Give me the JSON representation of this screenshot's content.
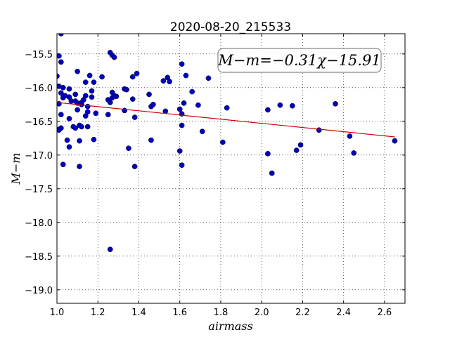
{
  "chart_data": {
    "type": "scatter",
    "title": "2020-08-20_215533",
    "xlabel": "airmass",
    "ylabel": "M−m",
    "xlim": [
      1.0,
      2.7
    ],
    "ylim": [
      -19.2,
      -15.2
    ],
    "y_inverted": true,
    "grid": true,
    "x_ticks": [
      1.0,
      1.2,
      1.4,
      1.6,
      1.8,
      2.0,
      2.2,
      2.4,
      2.6
    ],
    "x_tick_labels": [
      "1.0",
      "1.2",
      "1.4",
      "1.6",
      "1.8",
      "2.0",
      "2.2",
      "2.4",
      "2.6"
    ],
    "y_ticks": [
      -15.5,
      -16.0,
      -16.5,
      -17.0,
      -17.5,
      -18.0,
      -18.5,
      -19.0
    ],
    "y_tick_labels": [
      "−15.5",
      "−16.0",
      "−16.5",
      "−17.0",
      "−17.5",
      "−18.0",
      "−18.5",
      "−19.0"
    ],
    "annotation": "M−m=−0.31χ−15.91",
    "fit": {
      "slope": -0.31,
      "intercept": -15.91,
      "x_range": [
        1.0,
        2.65
      ],
      "color": "#cc0000"
    },
    "point_color": "#0000bb",
    "points": [
      [
        1.0,
        -15.83
      ],
      [
        1.01,
        -15.53
      ],
      [
        1.02,
        -15.2
      ],
      [
        1.02,
        -15.62
      ],
      [
        1.01,
        -15.98
      ],
      [
        1.03,
        -16.0
      ],
      [
        1.02,
        -16.08
      ],
      [
        1.03,
        -16.15
      ],
      [
        1.01,
        -16.24
      ],
      [
        1.04,
        -16.12
      ],
      [
        1.02,
        -16.4
      ],
      [
        1.01,
        -16.62
      ],
      [
        1.02,
        -16.6
      ],
      [
        1.01,
        -16.63
      ],
      [
        1.05,
        -16.78
      ],
      [
        1.06,
        -16.88
      ],
      [
        1.03,
        -17.14
      ],
      [
        1.06,
        -16.02
      ],
      [
        1.06,
        -16.14
      ],
      [
        1.07,
        -16.2
      ],
      [
        1.06,
        -16.46
      ],
      [
        1.08,
        -16.58
      ],
      [
        1.1,
        -15.76
      ],
      [
        1.09,
        -16.1
      ],
      [
        1.09,
        -16.2
      ],
      [
        1.1,
        -16.23
      ],
      [
        1.1,
        -16.33
      ],
      [
        1.09,
        -16.6
      ],
      [
        1.11,
        -16.56
      ],
      [
        1.12,
        -16.22
      ],
      [
        1.13,
        -16.18
      ],
      [
        1.12,
        -16.25
      ],
      [
        1.14,
        -16.12
      ],
      [
        1.12,
        -16.58
      ],
      [
        1.14,
        -15.92
      ],
      [
        1.14,
        -16.42
      ],
      [
        1.11,
        -16.79
      ],
      [
        1.11,
        -17.17
      ],
      [
        1.15,
        -16.28
      ],
      [
        1.15,
        -16.36
      ],
      [
        1.15,
        -16.58
      ],
      [
        1.16,
        -15.82
      ],
      [
        1.17,
        -16.14
      ],
      [
        1.17,
        -16.05
      ],
      [
        1.18,
        -15.92
      ],
      [
        1.18,
        -16.77
      ],
      [
        1.19,
        -16.38
      ],
      [
        1.22,
        -15.84
      ],
      [
        1.25,
        -16.4
      ],
      [
        1.25,
        -16.18
      ],
      [
        1.26,
        -16.22
      ],
      [
        1.26,
        -15.48
      ],
      [
        1.27,
        -15.52
      ],
      [
        1.28,
        -15.55
      ],
      [
        1.27,
        -16.07
      ],
      [
        1.27,
        -16.15
      ],
      [
        1.29,
        -16.13
      ],
      [
        1.28,
        -16.12
      ],
      [
        1.26,
        -18.4
      ],
      [
        1.33,
        -16.02
      ],
      [
        1.33,
        -16.34
      ],
      [
        1.34,
        -16.03
      ],
      [
        1.35,
        -16.9
      ],
      [
        1.37,
        -15.84
      ],
      [
        1.37,
        -16.17
      ],
      [
        1.38,
        -16.44
      ],
      [
        1.38,
        -17.17
      ],
      [
        1.39,
        -15.79
      ],
      [
        1.45,
        -16.1
      ],
      [
        1.46,
        -16.28
      ],
      [
        1.46,
        -16.78
      ],
      [
        1.47,
        -16.25
      ],
      [
        1.52,
        -15.9
      ],
      [
        1.53,
        -16.35
      ],
      [
        1.54,
        -15.85
      ],
      [
        1.55,
        -15.91
      ],
      [
        1.6,
        -16.32
      ],
      [
        1.6,
        -16.94
      ],
      [
        1.61,
        -15.65
      ],
      [
        1.61,
        -16.39
      ],
      [
        1.62,
        -16.23
      ],
      [
        1.61,
        -16.56
      ],
      [
        1.61,
        -17.15
      ],
      [
        1.63,
        -15.82
      ],
      [
        1.66,
        -16.06
      ],
      [
        1.69,
        -16.26
      ],
      [
        1.71,
        -16.65
      ],
      [
        1.74,
        -15.86
      ],
      [
        1.81,
        -16.81
      ],
      [
        1.83,
        -16.3
      ],
      [
        2.03,
        -16.33
      ],
      [
        2.03,
        -16.98
      ],
      [
        2.05,
        -17.27
      ],
      [
        2.09,
        -16.26
      ],
      [
        2.15,
        -16.27
      ],
      [
        2.17,
        -16.93
      ],
      [
        2.19,
        -16.85
      ],
      [
        2.28,
        -16.63
      ],
      [
        2.36,
        -16.24
      ],
      [
        2.43,
        -16.72
      ],
      [
        2.45,
        -16.97
      ],
      [
        2.65,
        -16.79
      ]
    ]
  }
}
